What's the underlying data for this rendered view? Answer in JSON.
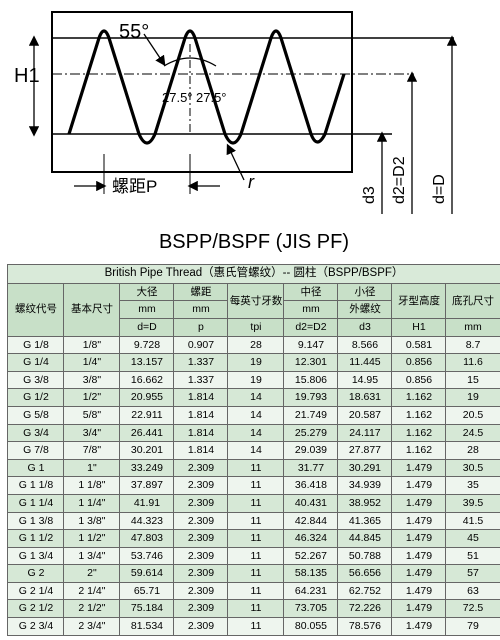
{
  "diagram": {
    "caption": "BSPP/BSPF (JIS PF)",
    "labels": {
      "h1": "H1",
      "angle55": "55°",
      "half1": "27.5°",
      "half2": "27.5°",
      "pitch": "螺距P",
      "radius": "r",
      "d3": "d3",
      "d2": "d2=D2",
      "d": "d=D"
    },
    "colors": {
      "stroke": "#000000",
      "bg": "#ffffff"
    }
  },
  "table": {
    "title": "British Pipe Thread（惠氏管螺纹）-- 圆柱（BSPP/BSPF）",
    "headers": {
      "code": {
        "l1": "螺纹代号"
      },
      "basic": {
        "l1": "基本尺寸"
      },
      "d": {
        "l1": "大径",
        "l2": "mm",
        "l3": "d=D"
      },
      "p": {
        "l1": "螺距",
        "l2": "mm",
        "l3": "p"
      },
      "tpi": {
        "l1": "每英寸牙数",
        "l2": "tpi"
      },
      "d2": {
        "l1": "中径",
        "l2": "mm",
        "l3": "d2=D2"
      },
      "d3": {
        "l1": "小径",
        "l2": "外螺纹",
        "l3": "d3"
      },
      "h1": {
        "l1": "牙型高度",
        "l2": "H1"
      },
      "hole": {
        "l1": "底孔尺寸",
        "l2": "mm"
      }
    },
    "rows": [
      {
        "code": "G 1/8",
        "basic": "1/8\"",
        "d": "9.728",
        "p": "0.907",
        "tpi": "28",
        "d2": "9.147",
        "d3": "8.566",
        "h1": "0.581",
        "hole": "8.7"
      },
      {
        "code": "G 1/4",
        "basic": "1/4\"",
        "d": "13.157",
        "p": "1.337",
        "tpi": "19",
        "d2": "12.301",
        "d3": "11.445",
        "h1": "0.856",
        "hole": "11.6"
      },
      {
        "code": "G 3/8",
        "basic": "3/8\"",
        "d": "16.662",
        "p": "1.337",
        "tpi": "19",
        "d2": "15.806",
        "d3": "14.95",
        "h1": "0.856",
        "hole": "15"
      },
      {
        "code": "G 1/2",
        "basic": "1/2\"",
        "d": "20.955",
        "p": "1.814",
        "tpi": "14",
        "d2": "19.793",
        "d3": "18.631",
        "h1": "1.162",
        "hole": "19"
      },
      {
        "code": "G 5/8",
        "basic": "5/8\"",
        "d": "22.911",
        "p": "1.814",
        "tpi": "14",
        "d2": "21.749",
        "d3": "20.587",
        "h1": "1.162",
        "hole": "20.5"
      },
      {
        "code": "G 3/4",
        "basic": "3/4\"",
        "d": "26.441",
        "p": "1.814",
        "tpi": "14",
        "d2": "25.279",
        "d3": "24.117",
        "h1": "1.162",
        "hole": "24.5"
      },
      {
        "code": "G 7/8",
        "basic": "7/8\"",
        "d": "30.201",
        "p": "1.814",
        "tpi": "14",
        "d2": "29.039",
        "d3": "27.877",
        "h1": "1.162",
        "hole": "28"
      },
      {
        "code": "G 1",
        "basic": "1\"",
        "d": "33.249",
        "p": "2.309",
        "tpi": "11",
        "d2": "31.77",
        "d3": "30.291",
        "h1": "1.479",
        "hole": "30.5"
      },
      {
        "code": "G 1 1/8",
        "basic": "1 1/8\"",
        "d": "37.897",
        "p": "2.309",
        "tpi": "11",
        "d2": "36.418",
        "d3": "34.939",
        "h1": "1.479",
        "hole": "35"
      },
      {
        "code": "G 1 1/4",
        "basic": "1 1/4\"",
        "d": "41.91",
        "p": "2.309",
        "tpi": "11",
        "d2": "40.431",
        "d3": "38.952",
        "h1": "1.479",
        "hole": "39.5"
      },
      {
        "code": "G 1 3/8",
        "basic": "1 3/8\"",
        "d": "44.323",
        "p": "2.309",
        "tpi": "11",
        "d2": "42.844",
        "d3": "41.365",
        "h1": "1.479",
        "hole": "41.5"
      },
      {
        "code": "G 1 1/2",
        "basic": "1 1/2\"",
        "d": "47.803",
        "p": "2.309",
        "tpi": "11",
        "d2": "46.324",
        "d3": "44.845",
        "h1": "1.479",
        "hole": "45"
      },
      {
        "code": "G 1 3/4",
        "basic": "1 3/4\"",
        "d": "53.746",
        "p": "2.309",
        "tpi": "11",
        "d2": "52.267",
        "d3": "50.788",
        "h1": "1.479",
        "hole": "51"
      },
      {
        "code": "G 2",
        "basic": "2\"",
        "d": "59.614",
        "p": "2.309",
        "tpi": "11",
        "d2": "58.135",
        "d3": "56.656",
        "h1": "1.479",
        "hole": "57"
      },
      {
        "code": "G 2 1/4",
        "basic": "2 1/4\"",
        "d": "65.71",
        "p": "2.309",
        "tpi": "11",
        "d2": "64.231",
        "d3": "62.752",
        "h1": "1.479",
        "hole": "63"
      },
      {
        "code": "G 2 1/2",
        "basic": "2 1/2\"",
        "d": "75.184",
        "p": "2.309",
        "tpi": "11",
        "d2": "73.705",
        "d3": "72.226",
        "h1": "1.479",
        "hole": "72.5"
      },
      {
        "code": "G 2 3/4",
        "basic": "2 3/4\"",
        "d": "81.534",
        "p": "2.309",
        "tpi": "11",
        "d2": "80.055",
        "d3": "78.576",
        "h1": "1.479",
        "hole": "79"
      }
    ]
  }
}
